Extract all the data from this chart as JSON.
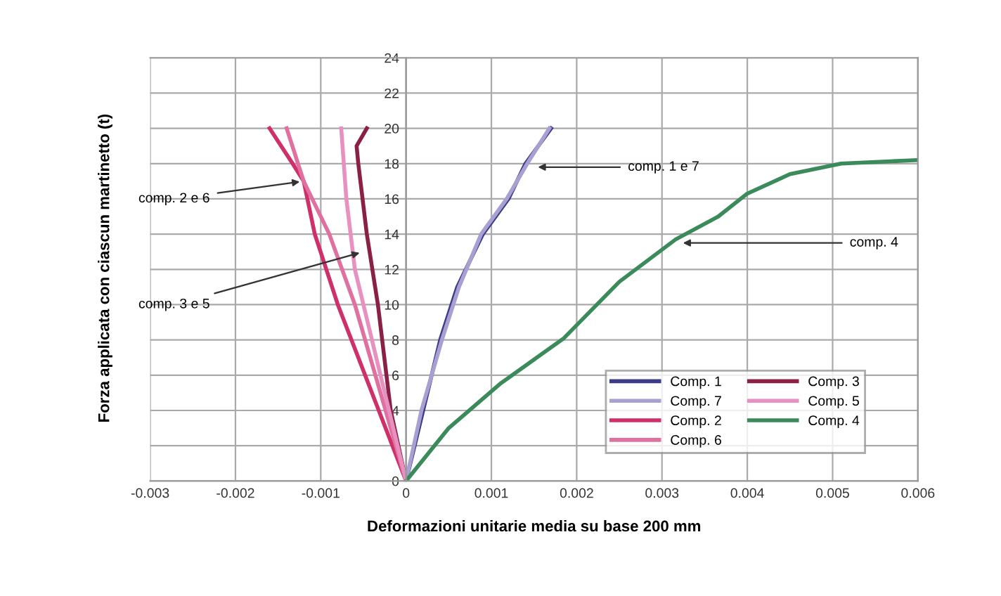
{
  "chart_data": {
    "type": "line",
    "xlabel": "Deformazioni unitarie media su base 200 mm",
    "ylabel": "Forza applicata con ciascun martinetto (t)",
    "xlim": [
      -0.003,
      0.006
    ],
    "xticks": [
      -0.003,
      -0.002,
      -0.001,
      0,
      0.001,
      0.002,
      0.003,
      0.004,
      0.005,
      0.006
    ],
    "ylim": [
      0,
      24
    ],
    "yticks": [
      0,
      2,
      4,
      6,
      8,
      10,
      12,
      14,
      16,
      18,
      20,
      22,
      24
    ],
    "grid": true,
    "legend": "bottom right",
    "marker": "none",
    "line_style": "solid",
    "series": [
      {
        "name": "Comp. 1",
        "color": "#3b3b8a",
        "x": [
          0,
          0.0002,
          0.0004,
          0.0006,
          0.0009,
          0.0012,
          0.0014,
          0.0017
        ],
        "values": [
          0,
          4,
          8,
          11,
          14,
          16,
          18,
          20
        ]
      },
      {
        "name": "Comp. 7",
        "color": "#a8a0d0",
        "x": [
          0,
          0.00018,
          0.00042,
          0.00062,
          0.00088,
          0.00118,
          0.00142,
          0.00168
        ],
        "values": [
          0,
          4,
          8,
          11,
          14,
          16,
          18,
          20
        ]
      },
      {
        "name": "Comp. 2",
        "color": "#d0306a",
        "x": [
          0,
          -0.0004,
          -0.0008,
          -0.00107,
          -0.0012,
          -0.00133,
          -0.0016
        ],
        "values": [
          0,
          5,
          10,
          14,
          17,
          18,
          20
        ]
      },
      {
        "name": "Comp. 6",
        "color": "#e070a0",
        "x": [
          0,
          -0.0003,
          -0.0006,
          -0.0009,
          -0.0012,
          -0.0014
        ],
        "values": [
          0,
          5,
          10,
          14,
          17,
          20
        ]
      },
      {
        "name": "Comp. 3",
        "color": "#8a2046",
        "x": [
          0,
          -0.00018,
          -0.00033,
          -0.00046,
          -0.00056,
          -0.00058,
          -0.00046
        ],
        "values": [
          0,
          4,
          10,
          14,
          18,
          19,
          20
        ]
      },
      {
        "name": "Comp. 5",
        "color": "#e890c0",
        "x": [
          0,
          -0.0003,
          -0.0006,
          -0.0007,
          -0.00076
        ],
        "values": [
          0,
          6,
          12,
          16,
          20
        ]
      },
      {
        "name": "Comp. 4",
        "color": "#3a8a5a",
        "x": [
          0,
          0.0005,
          0.0011,
          0.00185,
          0.0025,
          0.00316,
          0.00366,
          0.004,
          0.0045,
          0.0051,
          0.006
        ],
        "values": [
          0,
          3,
          5.5,
          8.1,
          11.3,
          13.7,
          15,
          16.3,
          17.4,
          18,
          18.2
        ]
      }
    ],
    "annotations": [
      {
        "text": "comp. 2 e 6",
        "x": -0.0012,
        "y": 17
      },
      {
        "text": "comp. 3 e 5",
        "x": -0.0005,
        "y": 13
      },
      {
        "text": "comp. 1 e 7",
        "x": 0.0015,
        "y": 17.8
      },
      {
        "text": "comp. 4",
        "x": 0.0032,
        "y": 13.5
      }
    ]
  }
}
